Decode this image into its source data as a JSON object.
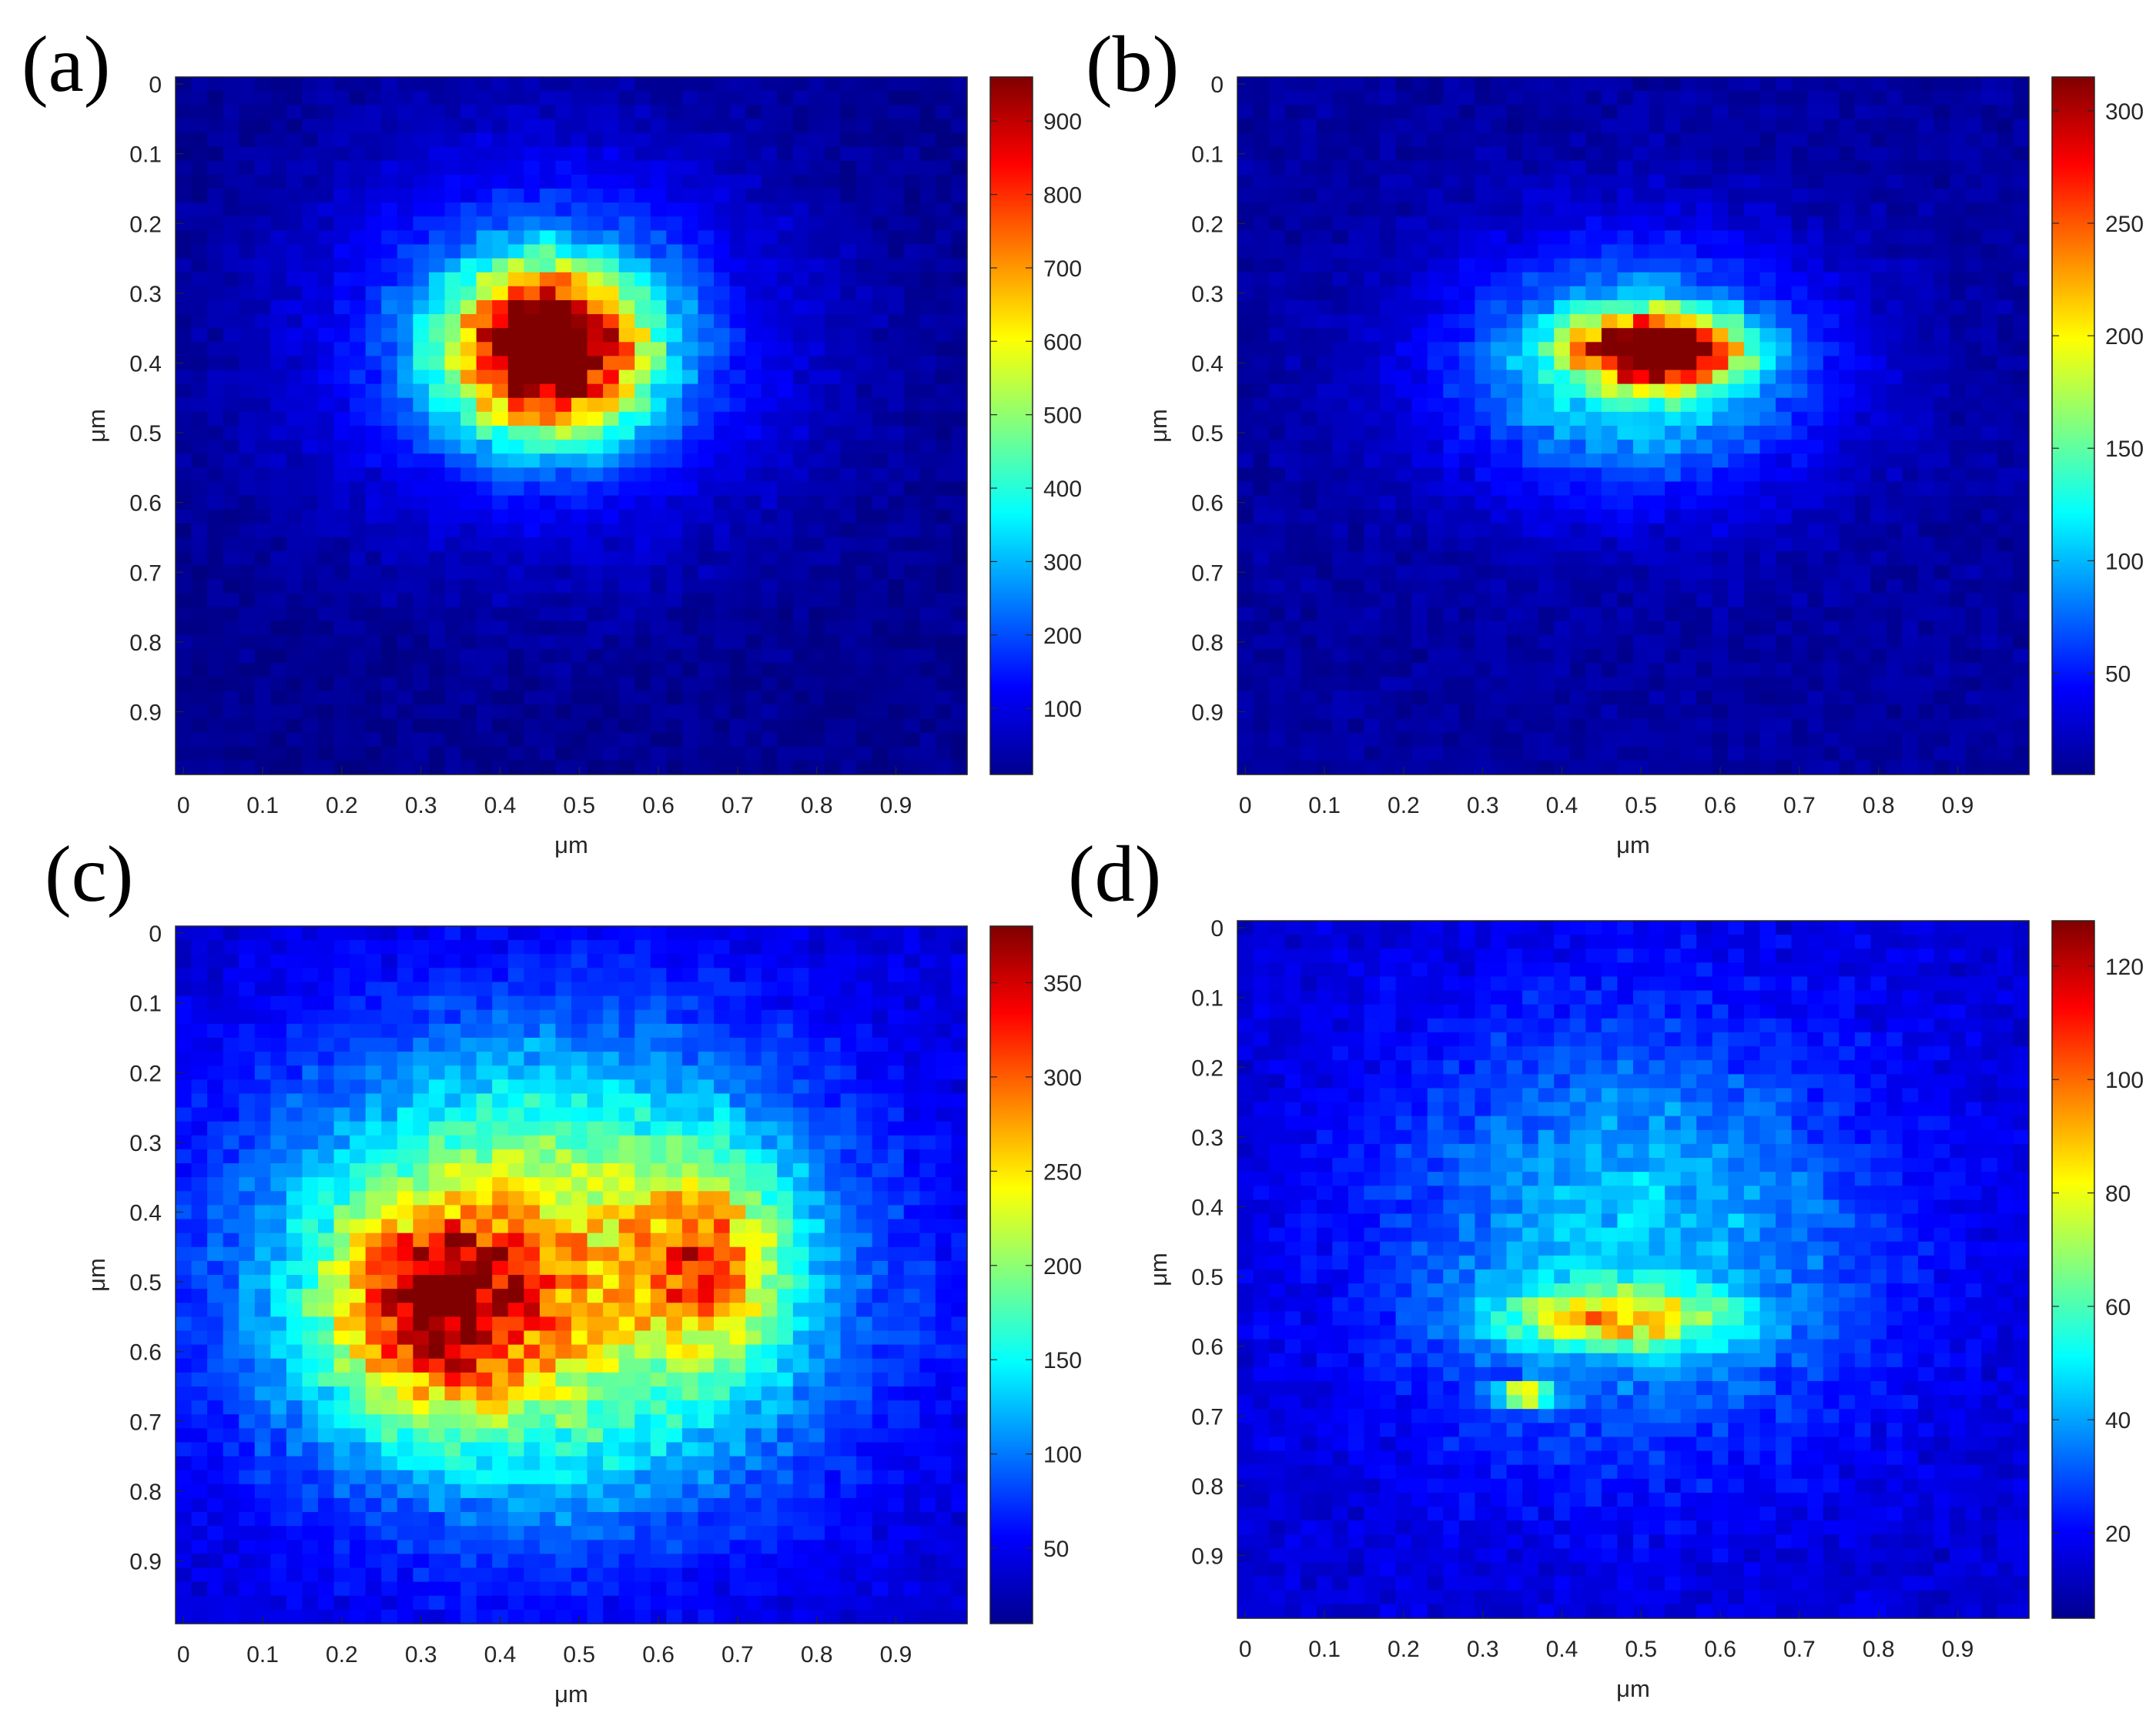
{
  "chart_data": [
    {
      "type": "heatmap",
      "panel_label": "(a)",
      "xlabel": "μm",
      "ylabel": "μm",
      "xlim": [
        0,
        1
      ],
      "ylim": [
        0,
        1
      ],
      "x_ticks": [
        "0",
        "0.1",
        "0.2",
        "0.3",
        "0.4",
        "0.5",
        "0.6",
        "0.7",
        "0.8",
        "0.9"
      ],
      "y_ticks": [
        "0",
        "0.1",
        "0.2",
        "0.3",
        "0.4",
        "0.5",
        "0.6",
        "0.7",
        "0.8",
        "0.9"
      ],
      "colorbar": {
        "range": [
          10,
          960
        ],
        "ticks": [
          "100",
          "200",
          "300",
          "400",
          "500",
          "600",
          "700",
          "800",
          "900"
        ]
      },
      "grid_size": 50,
      "hotspots": [
        {
          "x": 0.47,
          "y": 0.39,
          "peak": 950,
          "sigma_x": 0.085,
          "sigma_y": 0.08
        }
      ],
      "background": 25,
      "halo": {
        "x": 0.47,
        "y": 0.38,
        "peak": 230,
        "sigma_x": 0.2,
        "sigma_y": 0.18
      }
    },
    {
      "type": "heatmap",
      "panel_label": "(b)",
      "xlabel": "μm",
      "ylabel": "μm",
      "xlim": [
        0,
        1
      ],
      "ylim": [
        0,
        1
      ],
      "x_ticks": [
        "0",
        "0.1",
        "0.2",
        "0.3",
        "0.4",
        "0.5",
        "0.6",
        "0.7",
        "0.8",
        "0.9"
      ],
      "y_ticks": [
        "0",
        "0.1",
        "0.2",
        "0.3",
        "0.4",
        "0.5",
        "0.6",
        "0.7",
        "0.8",
        "0.9"
      ],
      "colorbar": {
        "range": [
          5,
          315
        ],
        "ticks": [
          "50",
          "100",
          "150",
          "200",
          "250",
          "300"
        ]
      },
      "grid_size": 50,
      "hotspots": [
        {
          "x": 0.53,
          "y": 0.39,
          "peak": 300,
          "sigma_x": 0.07,
          "sigma_y": 0.035
        }
      ],
      "background": 15,
      "halo": {
        "x": 0.5,
        "y": 0.42,
        "peak": 110,
        "sigma_x": 0.16,
        "sigma_y": 0.12
      }
    },
    {
      "type": "heatmap",
      "panel_label": "(c)",
      "xlabel": "μm",
      "ylabel": "μm",
      "xlim": [
        0,
        1
      ],
      "ylim": [
        0,
        1
      ],
      "x_ticks": [
        "0",
        "0.1",
        "0.2",
        "0.3",
        "0.4",
        "0.5",
        "0.6",
        "0.7",
        "0.8",
        "0.9"
      ],
      "y_ticks": [
        "0",
        "0.1",
        "0.2",
        "0.3",
        "0.4",
        "0.5",
        "0.6",
        "0.7",
        "0.8",
        "0.9"
      ],
      "colorbar": {
        "range": [
          10,
          380
        ],
        "ticks": [
          "50",
          "100",
          "150",
          "200",
          "250",
          "300",
          "350"
        ]
      },
      "grid_size": 50,
      "hotspots": [
        {
          "x": 0.33,
          "y": 0.55,
          "peak": 190,
          "sigma_x": 0.09,
          "sigma_y": 0.1
        },
        {
          "x": 0.67,
          "y": 0.48,
          "peak": 140,
          "sigma_x": 0.06,
          "sigma_y": 0.09
        }
      ],
      "background": 40,
      "halo": {
        "x": 0.47,
        "y": 0.5,
        "peak": 210,
        "sigma_x": 0.24,
        "sigma_y": 0.22
      }
    },
    {
      "type": "heatmap",
      "panel_label": "(d)",
      "xlabel": "μm",
      "ylabel": "μm",
      "xlim": [
        0,
        1
      ],
      "ylim": [
        0,
        1
      ],
      "x_ticks": [
        "0",
        "0.1",
        "0.2",
        "0.3",
        "0.4",
        "0.5",
        "0.6",
        "0.7",
        "0.8",
        "0.9"
      ],
      "y_ticks": [
        "0",
        "0.1",
        "0.2",
        "0.3",
        "0.4",
        "0.5",
        "0.6",
        "0.7",
        "0.8",
        "0.9"
      ],
      "colorbar": {
        "range": [
          5,
          128
        ],
        "ticks": [
          "20",
          "40",
          "60",
          "80",
          "100",
          "120"
        ]
      },
      "grid_size": 50,
      "hotspots": [
        {
          "x": 0.48,
          "y": 0.57,
          "peak": 55,
          "sigma_x": 0.1,
          "sigma_y": 0.03
        },
        {
          "x": 0.36,
          "y": 0.68,
          "peak": 100,
          "sigma_x": 0.025,
          "sigma_y": 0.008
        }
      ],
      "background": 15,
      "halo": {
        "x": 0.5,
        "y": 0.45,
        "peak": 30,
        "sigma_x": 0.22,
        "sigma_y": 0.22
      }
    }
  ]
}
